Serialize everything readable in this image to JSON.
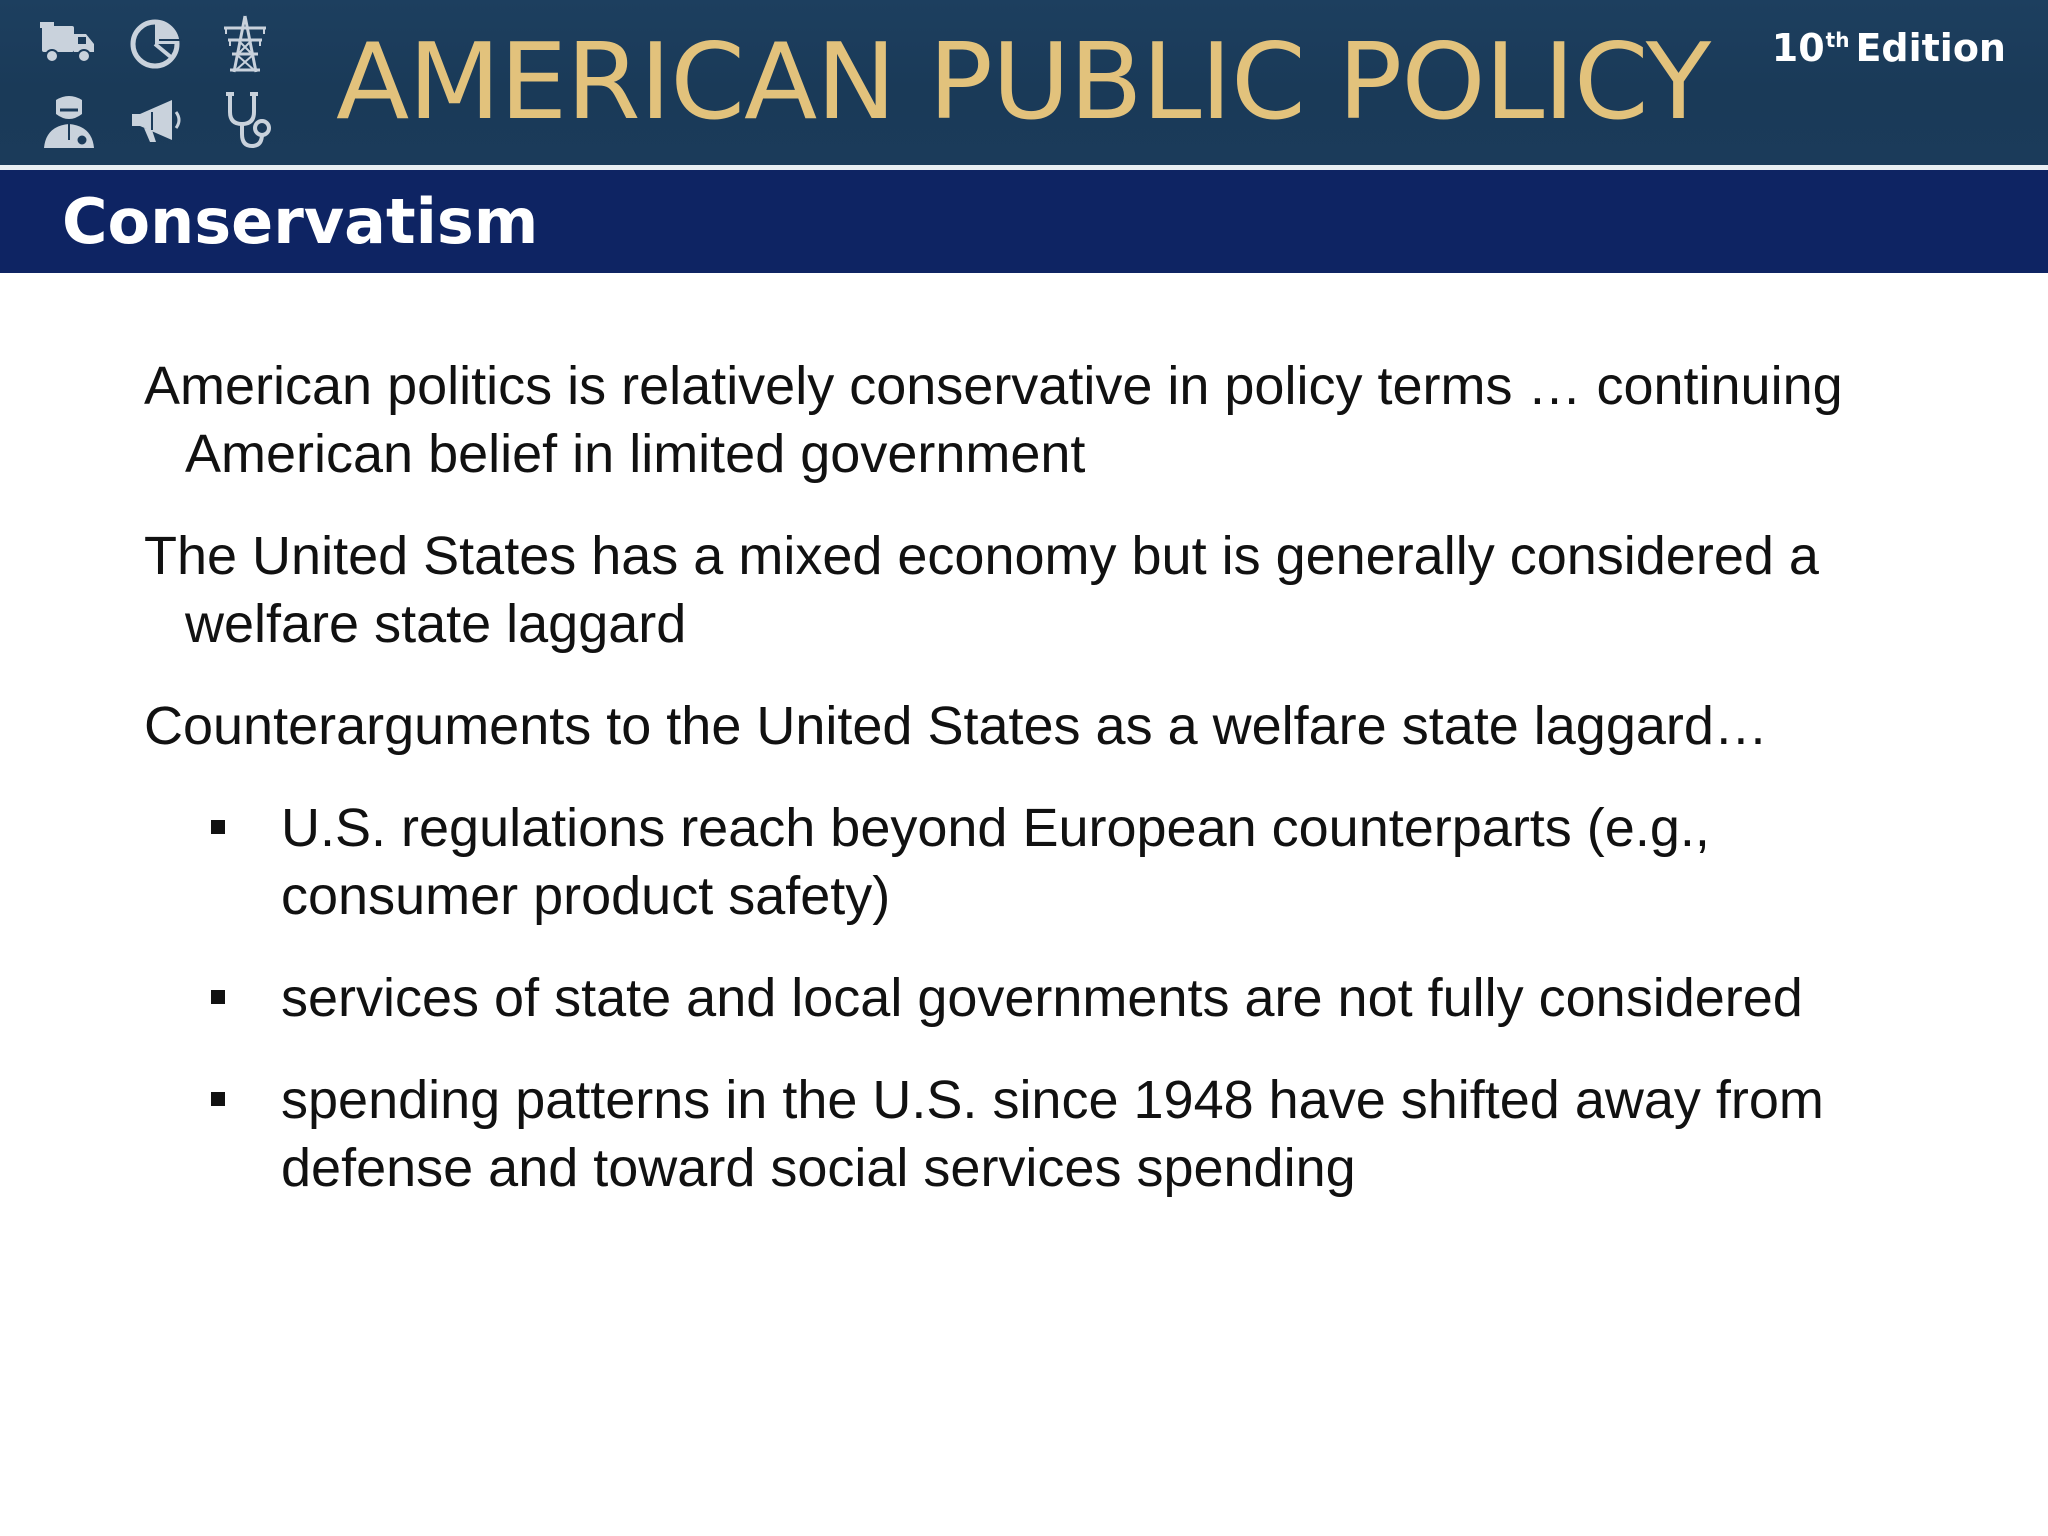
{
  "header": {
    "brand_title": "AMERICAN PUBLIC POLICY",
    "edition_number": "10",
    "edition_suffix": "th",
    "edition_word": "Edition",
    "icons": [
      "truck-icon",
      "pie-chart-icon",
      "power-tower-icon",
      "doctor-icon",
      "megaphone-icon",
      "stethoscope-icon"
    ],
    "colors": {
      "banner": "#1b3b5a",
      "brand_title": "#e2c27c",
      "title_bar": "#0e2463"
    }
  },
  "slide": {
    "title": "Conservatism",
    "paragraphs": [
      "American politics is relatively conservative in policy terms … continuing American belief in limited government",
      "The United States has a mixed economy but is generally considered a welfare state laggard",
      "Counterarguments to the United States as a welfare state laggard…"
    ],
    "bullets": [
      "U.S. regulations reach beyond European counterparts (e.g., consumer product safety)",
      "services of state and local governments are not fully considered",
      "spending patterns in the U.S. since 1948 have shifted away from defense and toward social services spending"
    ]
  }
}
